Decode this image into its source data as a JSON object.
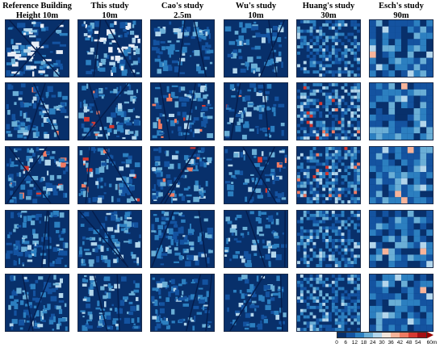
{
  "columns": [
    {
      "line1": "Reference Building",
      "line2": "Height 10m"
    },
    {
      "line1": "This study",
      "line2": "10m"
    },
    {
      "line1": "Cao's study",
      "line2": "2.5m"
    },
    {
      "line1": "Wu's study",
      "line2": "10m"
    },
    {
      "line1": "Huang's study",
      "line2": "30m"
    },
    {
      "line1": "Esch's study",
      "line2": "90m"
    }
  ],
  "rows": 5,
  "legend": {
    "ticks": [
      "0",
      "6",
      "12",
      "18",
      "24",
      "30",
      "36",
      "42",
      "48",
      "54",
      "60m"
    ],
    "colors": [
      "#08306b",
      "#1453a0",
      "#2c7fc0",
      "#6aaed6",
      "#b3d6ec",
      "#f4e6dc",
      "#f7b49a",
      "#ef7b63",
      "#d63a32",
      "#a50f15"
    ]
  }
}
